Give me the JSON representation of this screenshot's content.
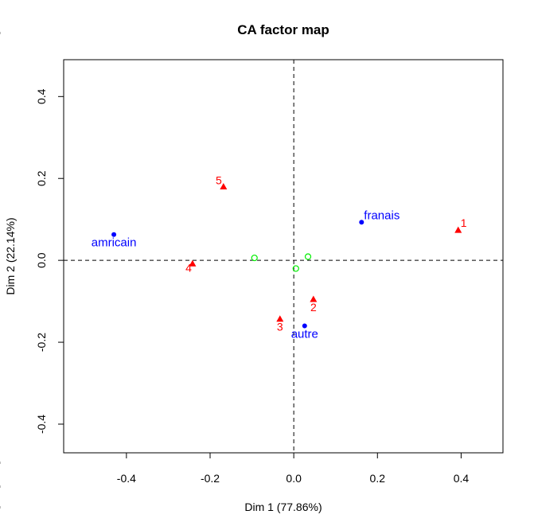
{
  "chart_data": {
    "type": "scatter",
    "title": "CA factor map",
    "xlabel": "Dim 1 (77.86%)",
    "ylabel": "Dim 2 (22.14%)",
    "xlim": [
      -0.55,
      0.5
    ],
    "ylim": [
      -0.47,
      0.49
    ],
    "xticks": [
      -0.4,
      -0.2,
      0.0,
      0.2,
      0.4
    ],
    "yticks": [
      -0.4,
      -0.2,
      0.0,
      0.2,
      0.4
    ],
    "xtick_labels": [
      "-0.4",
      "-0.2",
      "0.0",
      "0.2",
      "0.4"
    ],
    "ytick_labels": [
      "-0.4",
      "-0.2",
      "0.0",
      "0.2",
      "0.4"
    ],
    "reference_lines": {
      "x": 0,
      "y": 0,
      "style": "dashed"
    },
    "series": [
      {
        "marker": "circle-filled",
        "color": "#0000ff",
        "points": [
          {
            "label": "americain",
            "display": "amricain",
            "x": -0.43,
            "y": 0.063,
            "label_pos": "below"
          },
          {
            "label": "francais",
            "display": "franais",
            "x": 0.162,
            "y": 0.093,
            "label_pos": "above-right"
          },
          {
            "label": "autre",
            "display": "autre",
            "x": 0.026,
            "y": -0.16,
            "label_pos": "below"
          }
        ]
      },
      {
        "marker": "triangle-filled",
        "color": "#ff0000",
        "points": [
          {
            "label": "1",
            "x": 0.393,
            "y": 0.074,
            "label_pos": "above-right"
          },
          {
            "label": "2",
            "x": 0.047,
            "y": -0.095,
            "label_pos": "below"
          },
          {
            "label": "3",
            "x": -0.033,
            "y": -0.143,
            "label_pos": "below"
          },
          {
            "label": "4",
            "x": -0.242,
            "y": -0.008,
            "label_pos": "left"
          },
          {
            "label": "5",
            "x": -0.168,
            "y": 0.18,
            "label_pos": "above-left"
          }
        ]
      },
      {
        "marker": "circle-open",
        "color": "#00ee00",
        "points": [
          {
            "x": -0.094,
            "y": 0.006
          },
          {
            "x": 0.034,
            "y": 0.009
          },
          {
            "x": 0.005,
            "y": -0.02
          }
        ]
      }
    ]
  }
}
